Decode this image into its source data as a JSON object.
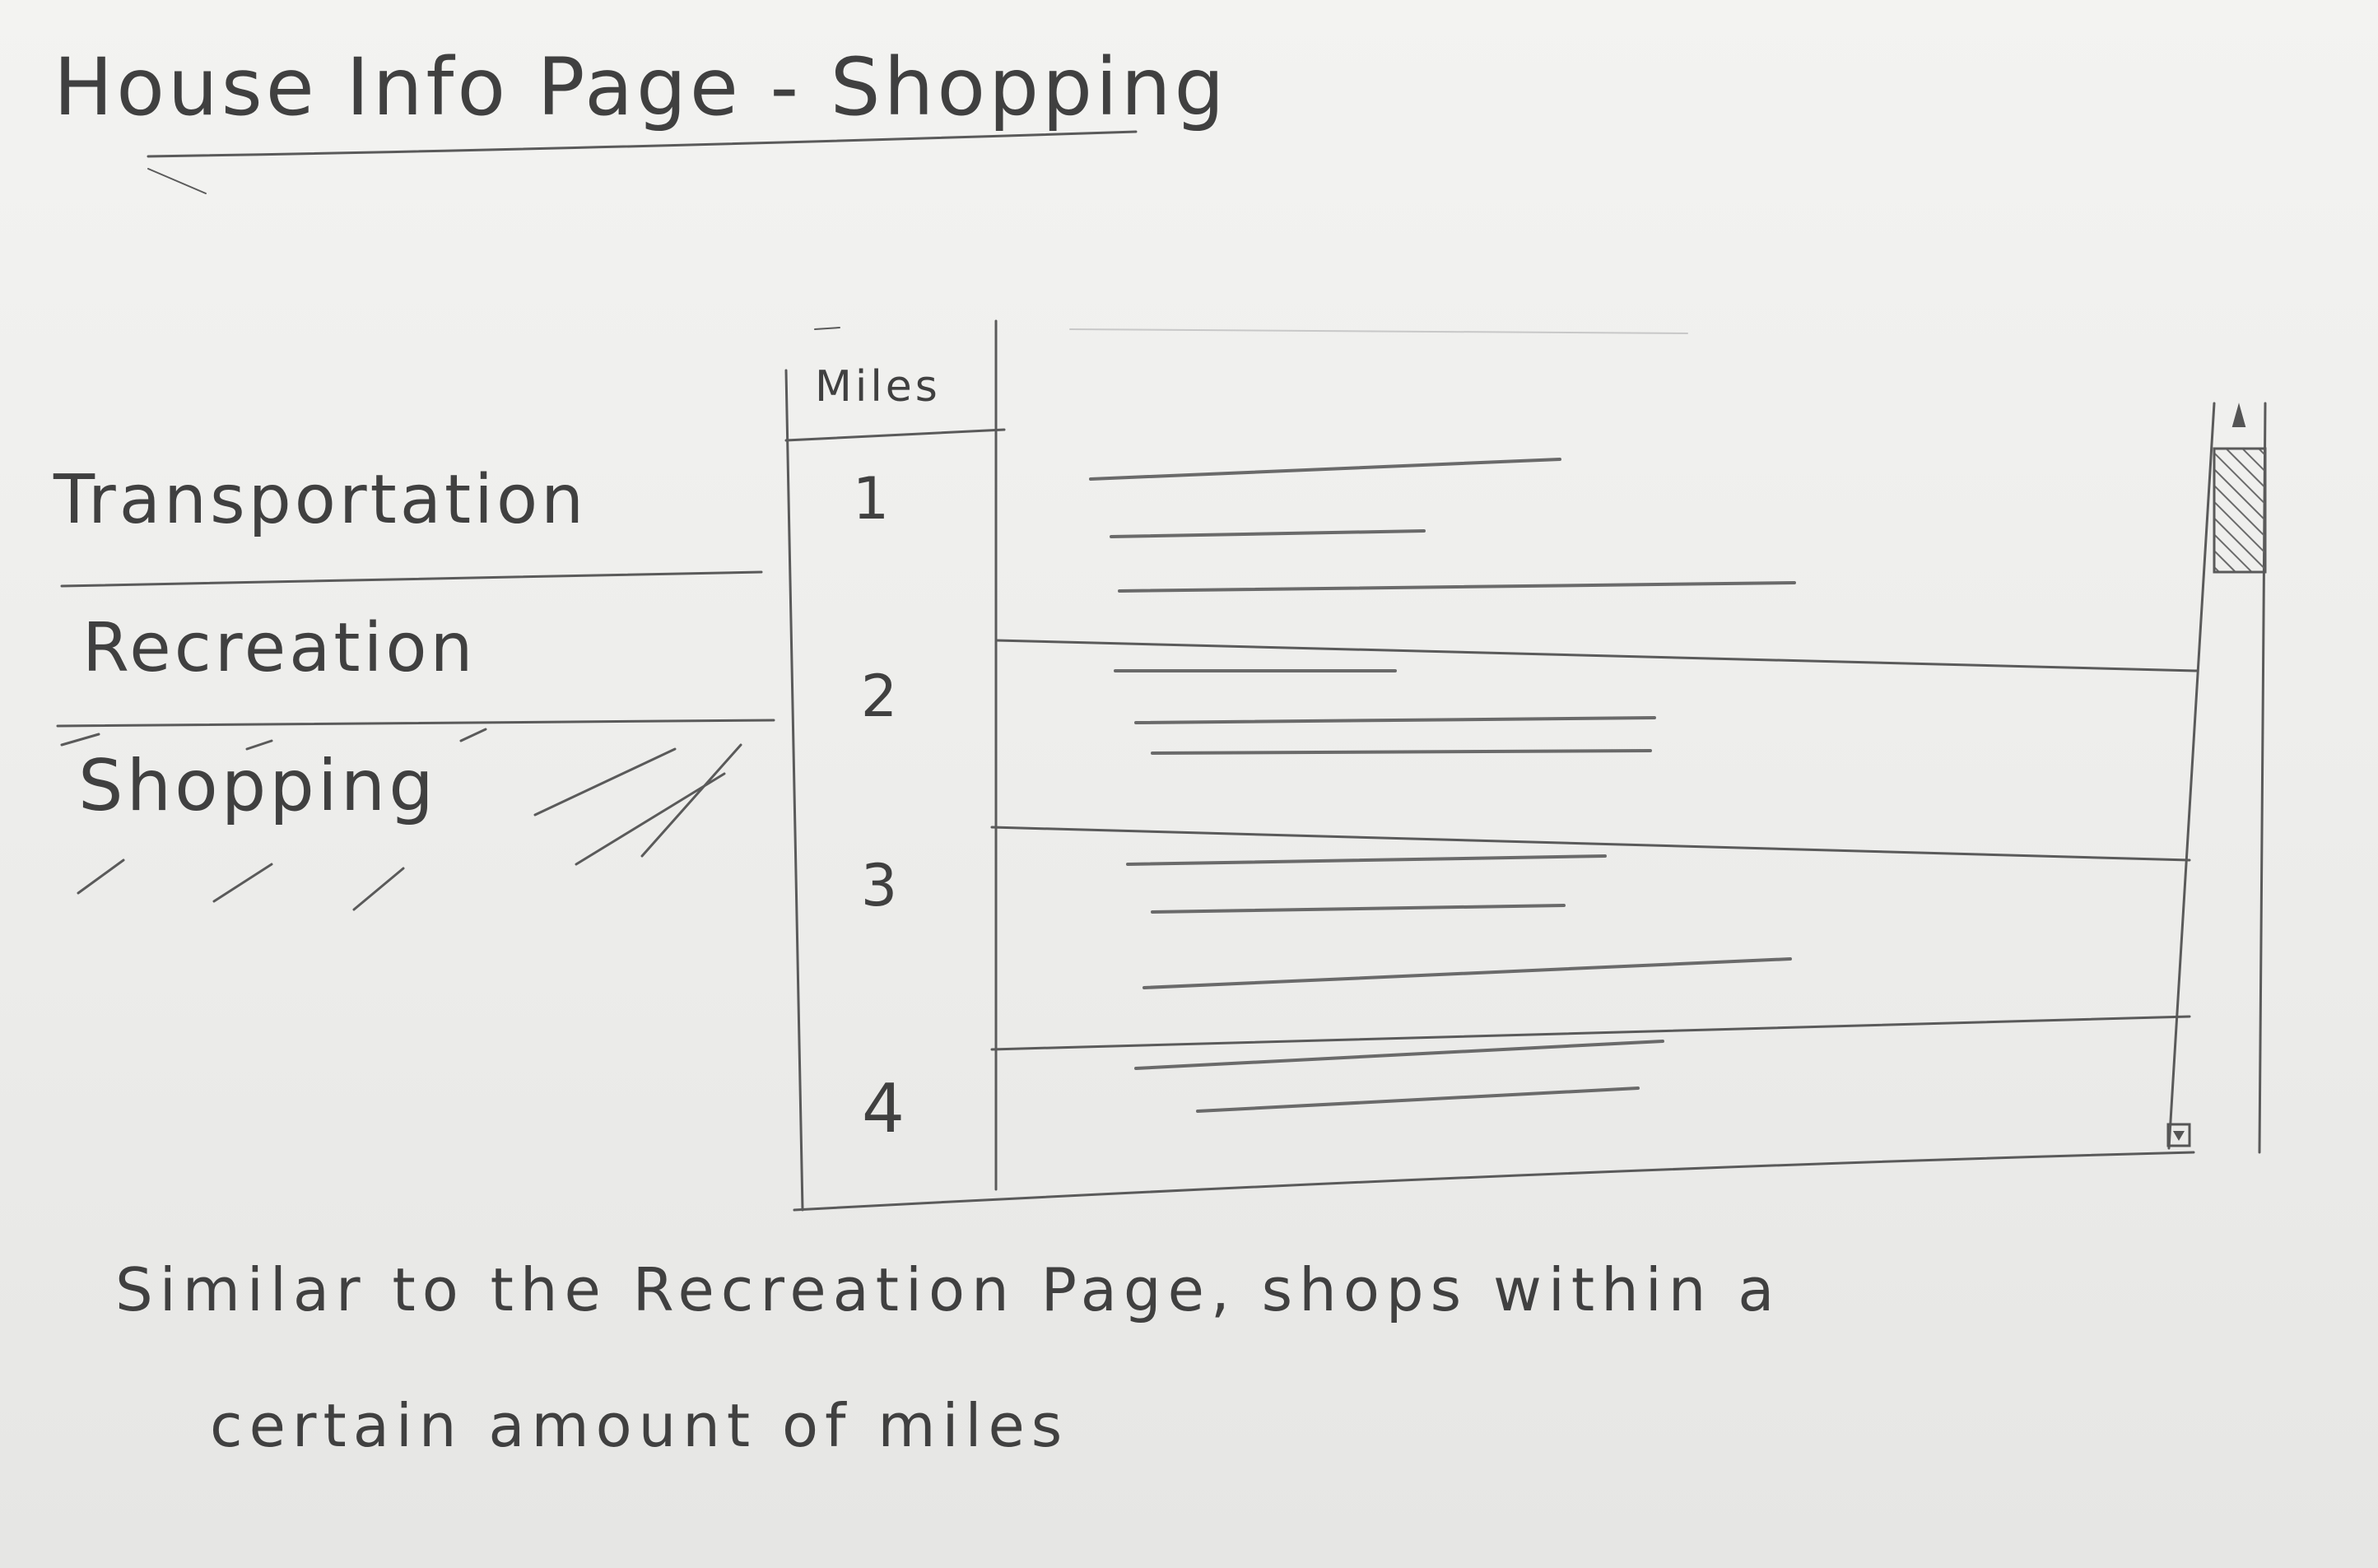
{
  "page": {
    "title": "House Info Page - Shopping"
  },
  "sidebar": {
    "items": [
      {
        "label": "Transportation"
      },
      {
        "label": "Recreation"
      },
      {
        "label": "Shopping",
        "selected": true
      }
    ]
  },
  "table": {
    "column_header": "Miles",
    "rows": [
      {
        "miles": "1"
      },
      {
        "miles": "2"
      },
      {
        "miles": "3"
      },
      {
        "miles": "4"
      }
    ]
  },
  "note": {
    "line1": "Similar to the Recreation Page, shops within a",
    "line2": "certain amount of miles"
  },
  "colors": {
    "paper": "#ececea",
    "pencil": "#4a4a4a"
  }
}
